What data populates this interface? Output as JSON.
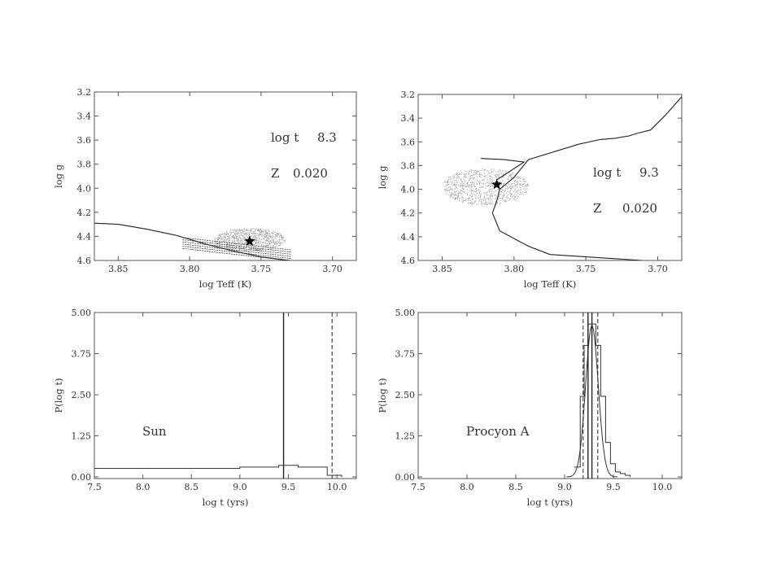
{
  "chart_data": [
    {
      "id": "hr_sun",
      "type": "line",
      "xlabel": "log Teff (K)",
      "ylabel": "log g",
      "xlim": [
        3.8667,
        3.6833
      ],
      "ylim": [
        4.6,
        3.2
      ],
      "xticks": [
        "3.85",
        "3.80",
        "3.75",
        "3.70"
      ],
      "xtick_values": [
        3.85,
        3.8,
        3.75,
        3.7
      ],
      "yticks": [
        "3.2",
        "3.4",
        "3.6",
        "3.8",
        "4.0",
        "4.2",
        "4.4",
        "4.6"
      ],
      "ytick_values": [
        3.2,
        3.4,
        3.6,
        3.8,
        4.0,
        4.2,
        4.4,
        4.6
      ],
      "annotations": [
        {
          "label": "log t",
          "value": "8.3"
        },
        {
          "label": "Z",
          "value": "0.020"
        }
      ],
      "series": [
        {
          "kind": "isochrone",
          "x": [
            3.8667,
            3.85,
            3.83,
            3.81,
            3.79,
            3.77,
            3.75,
            3.73
          ],
          "y": [
            4.29,
            4.3,
            4.34,
            4.39,
            4.46,
            4.52,
            4.57,
            4.6
          ]
        }
      ],
      "scatter_cloud": {
        "kind": "sampled-models",
        "center": [
          3.758,
          4.43
        ],
        "spread": [
          0.025,
          0.14
        ]
      },
      "marker": {
        "symbol": "star",
        "x": 3.758,
        "y": 4.44
      }
    },
    {
      "id": "hr_procyon",
      "type": "line",
      "xlabel": "log Teff (K)",
      "ylabel": "log g",
      "xlim": [
        3.8667,
        3.6833
      ],
      "ylim": [
        4.6,
        3.2
      ],
      "xticks": [
        "3.85",
        "3.80",
        "3.75",
        "3.70"
      ],
      "xtick_values": [
        3.85,
        3.8,
        3.75,
        3.7
      ],
      "yticks": [
        "3.2",
        "3.4",
        "3.6",
        "3.8",
        "4.0",
        "4.2",
        "4.4",
        "4.6"
      ],
      "ytick_values": [
        3.2,
        3.4,
        3.6,
        3.8,
        4.0,
        4.2,
        4.4,
        4.6
      ],
      "annotations": [
        {
          "label": "log t",
          "value": "9.3"
        },
        {
          "label": "Z",
          "value": "0.020"
        }
      ],
      "series": [
        {
          "kind": "isochrone",
          "x": [
            3.711,
            3.775,
            3.79,
            3.81,
            3.815,
            3.812,
            3.81,
            3.8,
            3.79,
            3.755,
            3.74,
            3.73,
            3.72,
            3.715
          ],
          "y": [
            4.6,
            4.55,
            4.48,
            4.35,
            4.2,
            4.1,
            4.0,
            3.9,
            3.75,
            3.62,
            3.58,
            3.57,
            3.55,
            3.53
          ]
        },
        {
          "kind": "isochrone-upper",
          "x": [
            3.715,
            3.705,
            3.695,
            3.6833
          ],
          "y": [
            3.53,
            3.5,
            3.38,
            3.22
          ]
        },
        {
          "kind": "hook",
          "x": [
            3.823,
            3.807,
            3.793,
            3.812
          ],
          "y": [
            3.74,
            3.75,
            3.77,
            3.92
          ]
        }
      ],
      "scatter_cloud": {
        "kind": "sampled-models",
        "center": [
          3.82,
          3.98
        ],
        "spread": [
          0.03,
          0.22
        ]
      },
      "marker": {
        "symbol": "star",
        "x": 3.812,
        "y": 3.96
      }
    },
    {
      "id": "prob_sun",
      "type": "line",
      "xlabel": "log t (yrs)",
      "ylabel": "P(log t)",
      "xlim": [
        7.5,
        10.2
      ],
      "ylim": [
        -0.05,
        5.0
      ],
      "xticks": [
        "7.5",
        "8.0",
        "8.5",
        "9.0",
        "9.5",
        "10.0"
      ],
      "xtick_values": [
        7.5,
        8.0,
        8.5,
        9.0,
        9.5,
        10.0
      ],
      "yticks": [
        "0.00",
        "1.25",
        "2.50",
        "3.75",
        "5.00"
      ],
      "ytick_values": [
        0.0,
        1.25,
        2.5,
        3.75,
        5.0
      ],
      "annotations": [
        {
          "label": "Sun"
        }
      ],
      "histogram": {
        "edges": [
          7.5,
          9.0,
          9.4,
          9.6,
          9.9,
          10.05
        ],
        "values": [
          0.26,
          0.3,
          0.35,
          0.3,
          0.05
        ]
      },
      "vlines": [
        {
          "x": 9.45,
          "style": "solid"
        },
        {
          "x": 9.95,
          "style": "dashed"
        }
      ]
    },
    {
      "id": "prob_procyon",
      "type": "line",
      "xlabel": "log t (yrs)",
      "ylabel": "P(log t)",
      "xlim": [
        7.5,
        10.2
      ],
      "ylim": [
        -0.05,
        5.0
      ],
      "xticks": [
        "7.5",
        "8.0",
        "8.5",
        "9.0",
        "9.5",
        "10.0"
      ],
      "xtick_values": [
        7.5,
        8.0,
        8.5,
        9.0,
        9.5,
        10.0
      ],
      "yticks": [
        "0.00",
        "1.25",
        "2.50",
        "3.75",
        "5.00"
      ],
      "ytick_values": [
        0.0,
        1.25,
        2.5,
        3.75,
        5.0
      ],
      "annotations": [
        {
          "label": "Procyon A"
        }
      ],
      "histogram": {
        "edges": [
          9.1,
          9.16,
          9.2,
          9.24,
          9.32,
          9.37,
          9.42,
          9.47,
          9.52,
          9.57,
          9.62,
          9.67
        ],
        "values": [
          0.3,
          2.45,
          4.0,
          4.65,
          4.0,
          2.45,
          1.05,
          0.4,
          0.15,
          0.1,
          0.05
        ]
      },
      "gauss_fit": {
        "mu": 9.28,
        "sigma": 0.065,
        "amp": 4.6
      },
      "vlines": [
        {
          "x": 9.19,
          "style": "dashed"
        },
        {
          "x": 9.24,
          "style": "solid"
        },
        {
          "x": 9.28,
          "style": "solid"
        },
        {
          "x": 9.34,
          "style": "dashed"
        }
      ]
    }
  ]
}
